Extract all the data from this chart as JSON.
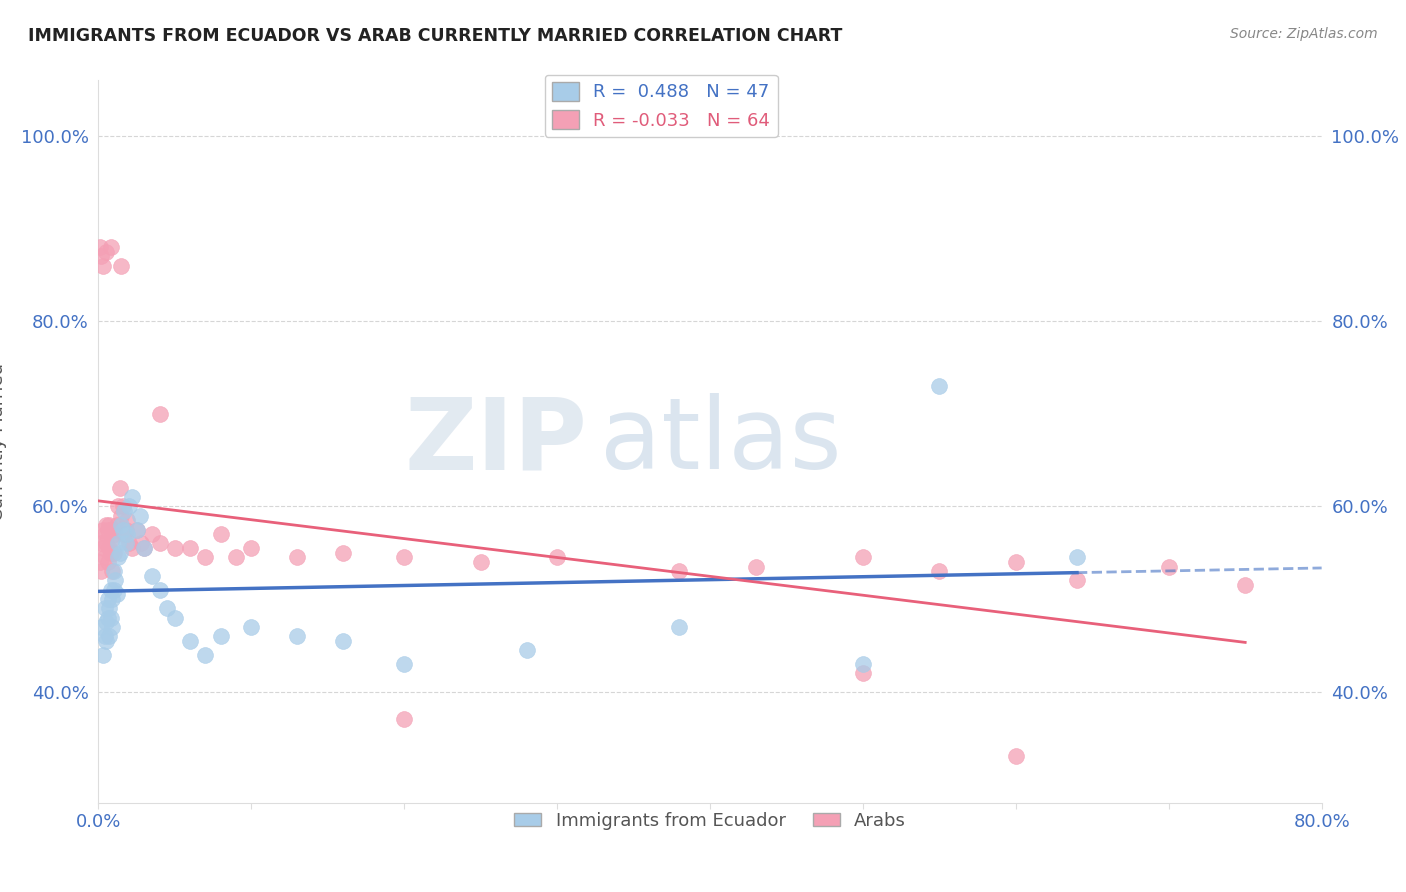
{
  "title": "IMMIGRANTS FROM ECUADOR VS ARAB CURRENTLY MARRIED CORRELATION CHART",
  "source": "Source: ZipAtlas.com",
  "xlabel_blue": "Immigrants from Ecuador",
  "xlabel_pink": "Arabs",
  "ylabel": "Currently Married",
  "xlim": [
    0.0,
    0.8
  ],
  "ylim": [
    0.28,
    1.06
  ],
  "xticks": [
    0.0,
    0.1,
    0.2,
    0.3,
    0.4,
    0.5,
    0.6,
    0.7,
    0.8
  ],
  "xtick_labels": [
    "0.0%",
    "",
    "",
    "",
    "",
    "",
    "",
    "",
    "80.0%"
  ],
  "yticks": [
    0.4,
    0.6,
    0.8,
    1.0
  ],
  "ytick_labels": [
    "40.0%",
    "60.0%",
    "80.0%",
    "100.0%"
  ],
  "legend_blue_R": "0.488",
  "legend_blue_N": "47",
  "legend_pink_R": "-0.033",
  "legend_pink_N": "64",
  "blue_color": "#a8cce8",
  "pink_color": "#f4a0b5",
  "blue_line_color": "#4472c4",
  "pink_line_color": "#e8607a",
  "grid_color": "#cccccc",
  "background_color": "#ffffff",
  "watermark_zip": "ZIP",
  "watermark_atlas": "atlas",
  "ecuador_x": [
    0.002,
    0.003,
    0.004,
    0.004,
    0.005,
    0.005,
    0.006,
    0.006,
    0.007,
    0.007,
    0.008,
    0.008,
    0.009,
    0.009,
    0.01,
    0.01,
    0.011,
    0.012,
    0.013,
    0.013,
    0.014,
    0.015,
    0.016,
    0.017,
    0.018,
    0.019,
    0.02,
    0.022,
    0.025,
    0.027,
    0.03,
    0.035,
    0.04,
    0.045,
    0.05,
    0.06,
    0.07,
    0.08,
    0.1,
    0.13,
    0.16,
    0.2,
    0.28,
    0.38,
    0.5,
    0.55,
    0.64
  ],
  "ecuador_y": [
    0.47,
    0.44,
    0.46,
    0.49,
    0.455,
    0.475,
    0.48,
    0.5,
    0.49,
    0.46,
    0.51,
    0.48,
    0.5,
    0.47,
    0.51,
    0.53,
    0.52,
    0.505,
    0.545,
    0.56,
    0.55,
    0.58,
    0.575,
    0.595,
    0.56,
    0.57,
    0.6,
    0.61,
    0.575,
    0.59,
    0.555,
    0.525,
    0.51,
    0.49,
    0.48,
    0.455,
    0.44,
    0.46,
    0.47,
    0.46,
    0.455,
    0.43,
    0.445,
    0.47,
    0.43,
    0.73,
    0.545
  ],
  "arab_x": [
    0.001,
    0.002,
    0.002,
    0.003,
    0.003,
    0.004,
    0.004,
    0.005,
    0.005,
    0.006,
    0.006,
    0.007,
    0.007,
    0.008,
    0.008,
    0.009,
    0.009,
    0.01,
    0.01,
    0.011,
    0.012,
    0.013,
    0.014,
    0.015,
    0.016,
    0.017,
    0.018,
    0.019,
    0.02,
    0.022,
    0.025,
    0.028,
    0.03,
    0.035,
    0.04,
    0.05,
    0.06,
    0.07,
    0.08,
    0.09,
    0.1,
    0.13,
    0.16,
    0.2,
    0.25,
    0.3,
    0.38,
    0.43,
    0.5,
    0.55,
    0.6,
    0.64,
    0.7,
    0.75,
    0.001,
    0.002,
    0.003,
    0.005,
    0.008,
    0.015,
    0.04,
    0.2,
    0.5,
    0.6
  ],
  "arab_y": [
    0.54,
    0.56,
    0.53,
    0.575,
    0.555,
    0.57,
    0.545,
    0.58,
    0.56,
    0.575,
    0.54,
    0.58,
    0.555,
    0.575,
    0.55,
    0.565,
    0.53,
    0.575,
    0.55,
    0.57,
    0.58,
    0.6,
    0.62,
    0.59,
    0.6,
    0.57,
    0.575,
    0.585,
    0.56,
    0.555,
    0.575,
    0.56,
    0.555,
    0.57,
    0.56,
    0.555,
    0.555,
    0.545,
    0.57,
    0.545,
    0.555,
    0.545,
    0.55,
    0.545,
    0.54,
    0.545,
    0.53,
    0.535,
    0.545,
    0.53,
    0.54,
    0.52,
    0.535,
    0.515,
    0.88,
    0.87,
    0.86,
    0.875,
    0.88,
    0.86,
    0.7,
    0.37,
    0.42,
    0.33
  ]
}
